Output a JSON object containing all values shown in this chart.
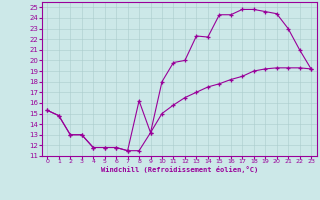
{
  "xlabel": "Windchill (Refroidissement éolien,°C)",
  "bg_color": "#cce8e8",
  "line_color": "#990099",
  "xlim": [
    -0.5,
    23.5
  ],
  "ylim": [
    11,
    25.5
  ],
  "xticks": [
    0,
    1,
    2,
    3,
    4,
    5,
    6,
    7,
    8,
    9,
    10,
    11,
    12,
    13,
    14,
    15,
    16,
    17,
    18,
    19,
    20,
    21,
    22,
    23
  ],
  "yticks": [
    11,
    12,
    13,
    14,
    15,
    16,
    17,
    18,
    19,
    20,
    21,
    22,
    23,
    24,
    25
  ],
  "line1_x": [
    0,
    1,
    2,
    3,
    4,
    5,
    6,
    7,
    8,
    9,
    10,
    11,
    12,
    13,
    14,
    15,
    16,
    17,
    18,
    19,
    20,
    21,
    22,
    23
  ],
  "line1_y": [
    15.3,
    14.8,
    13.0,
    13.0,
    11.8,
    11.8,
    11.8,
    11.5,
    16.2,
    13.2,
    18.0,
    19.8,
    20.0,
    22.3,
    22.2,
    24.3,
    24.3,
    24.8,
    24.8,
    24.6,
    24.4,
    23.0,
    21.0,
    19.2
  ],
  "line2_x": [
    0,
    1,
    2,
    3,
    4,
    5,
    6,
    7,
    8,
    9,
    10,
    11,
    12,
    13,
    14,
    15,
    16,
    17,
    18,
    19,
    20,
    21,
    22,
    23
  ],
  "line2_y": [
    15.3,
    14.8,
    13.0,
    13.0,
    11.8,
    11.8,
    11.8,
    11.5,
    11.5,
    13.2,
    15.0,
    15.8,
    16.5,
    17.0,
    17.5,
    17.8,
    18.2,
    18.5,
    19.0,
    19.2,
    19.3,
    19.3,
    19.3,
    19.2
  ]
}
